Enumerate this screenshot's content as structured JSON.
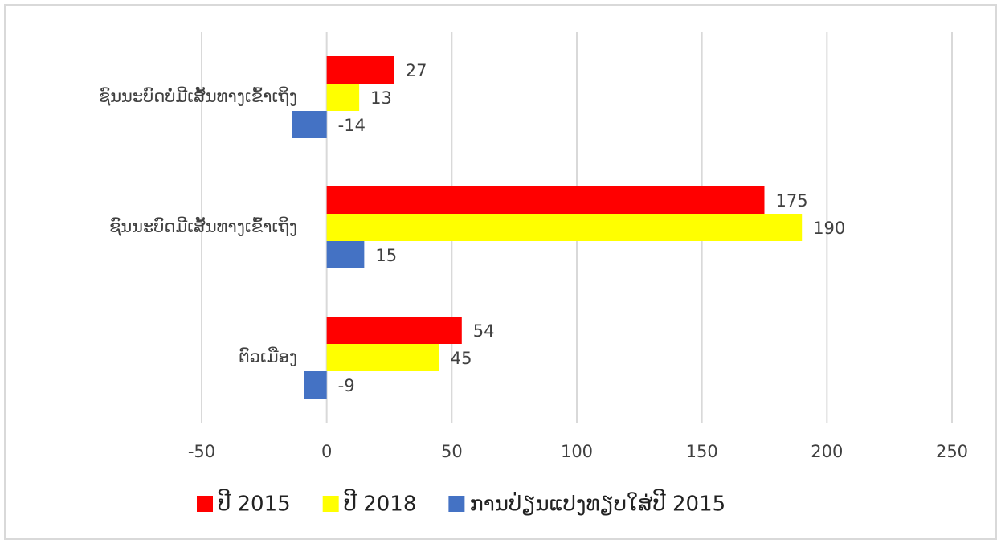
{
  "chart_data": {
    "type": "bar",
    "orientation": "horizontal",
    "categories": [
      "ຊົນນະບົດບໍ່ມີເສັ້ນທາງເຂົ້າເຖິງ",
      "ຊົນນະບົດມີເສັ້ນທາງເຂົ້າເຖິງ",
      "ຕົວເມືອງ"
    ],
    "series": [
      {
        "name": "ປີ 2015",
        "color": "#ff0000",
        "values": [
          27,
          175,
          54
        ]
      },
      {
        "name": "ປີ 2018",
        "color": "#ffff00",
        "values": [
          13,
          190,
          45
        ]
      },
      {
        "name": "ການປ່ຽນແປງທຽບໃສ່ປີ 2015",
        "color": "#4472c4",
        "values": [
          -14,
          15,
          -9
        ]
      }
    ],
    "xlim": [
      -50,
      250
    ],
    "xticks": [
      -50,
      0,
      50,
      100,
      150,
      200,
      250
    ],
    "grid": true,
    "legend": "bottom"
  }
}
